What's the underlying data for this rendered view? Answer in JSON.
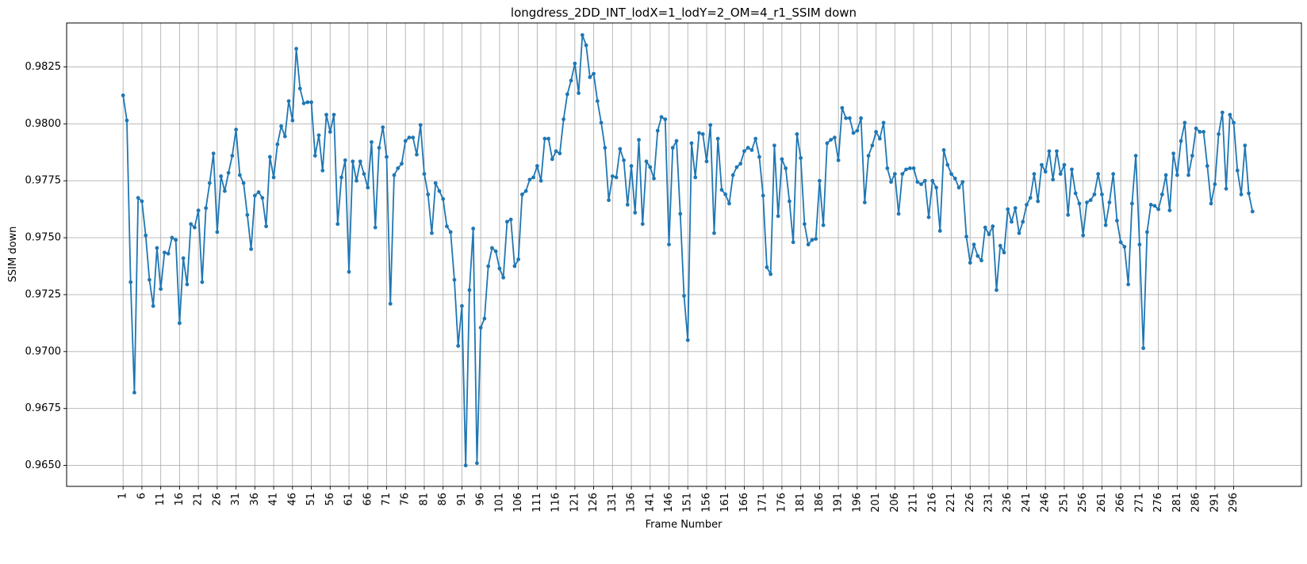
{
  "chart_data": {
    "type": "line",
    "title": "longdress_2DD_INT_lodX=1_lodY=2_OM=4_r1_SSIM down",
    "xlabel": "Frame Number",
    "ylabel": "SSIM down",
    "xlim": [
      -14,
      314
    ],
    "ylim": [
      0.96408,
      0.98443
    ],
    "xticks": [
      1,
      6,
      11,
      16,
      21,
      26,
      31,
      36,
      41,
      46,
      51,
      56,
      61,
      66,
      71,
      76,
      81,
      86,
      91,
      96,
      101,
      106,
      111,
      116,
      121,
      126,
      131,
      136,
      141,
      146,
      151,
      156,
      161,
      166,
      171,
      176,
      181,
      186,
      191,
      196,
      201,
      206,
      211,
      216,
      221,
      226,
      231,
      236,
      241,
      246,
      251,
      256,
      261,
      266,
      271,
      276,
      281,
      286,
      291,
      296
    ],
    "yticks": [
      "0.9650",
      "0.9675",
      "0.9700",
      "0.9725",
      "0.9750",
      "0.9775",
      "0.9800",
      "0.9825"
    ],
    "grid": true,
    "color": "#1f77b4",
    "marker": "circle",
    "series": [
      {
        "x_start": 1,
        "values": [
          0.98125,
          0.98015,
          0.97305,
          0.9682,
          0.97675,
          0.9766,
          0.9751,
          0.97315,
          0.972,
          0.97455,
          0.97275,
          0.97435,
          0.9743,
          0.975,
          0.9749,
          0.97125,
          0.9741,
          0.97295,
          0.9756,
          0.97545,
          0.9762,
          0.97305,
          0.9763,
          0.9774,
          0.9787,
          0.97525,
          0.9777,
          0.97705,
          0.97785,
          0.9786,
          0.97975,
          0.97775,
          0.9774,
          0.976,
          0.9745,
          0.97685,
          0.977,
          0.97675,
          0.9755,
          0.97855,
          0.97765,
          0.9791,
          0.9799,
          0.97945,
          0.981,
          0.98015,
          0.9833,
          0.98155,
          0.9809,
          0.98095,
          0.98095,
          0.9786,
          0.9795,
          0.97795,
          0.9804,
          0.97965,
          0.9804,
          0.9756,
          0.97765,
          0.9784,
          0.9735,
          0.97835,
          0.9775,
          0.97835,
          0.9778,
          0.9772,
          0.9792,
          0.97545,
          0.97895,
          0.97985,
          0.97855,
          0.9721,
          0.97775,
          0.97805,
          0.97825,
          0.97925,
          0.9794,
          0.9794,
          0.97865,
          0.97995,
          0.9778,
          0.9769,
          0.9752,
          0.9774,
          0.97705,
          0.9767,
          0.9755,
          0.97525,
          0.97315,
          0.97025,
          0.972,
          0.965,
          0.9727,
          0.9754,
          0.9651,
          0.97105,
          0.97145,
          0.97375,
          0.97455,
          0.9744,
          0.97365,
          0.97325,
          0.9757,
          0.9758,
          0.97375,
          0.97405,
          0.9769,
          0.97705,
          0.97755,
          0.97765,
          0.97815,
          0.9775,
          0.97935,
          0.97935,
          0.97845,
          0.9788,
          0.9787,
          0.9802,
          0.9813,
          0.9819,
          0.98265,
          0.98135,
          0.9839,
          0.98345,
          0.98205,
          0.9822,
          0.981,
          0.98005,
          0.97895,
          0.97665,
          0.9777,
          0.97765,
          0.9789,
          0.9784,
          0.97645,
          0.97815,
          0.9761,
          0.9793,
          0.9756,
          0.97835,
          0.9781,
          0.9776,
          0.9797,
          0.9803,
          0.9802,
          0.9747,
          0.97895,
          0.97925,
          0.97605,
          0.97245,
          0.9705,
          0.97915,
          0.97765,
          0.9796,
          0.97955,
          0.97835,
          0.97995,
          0.9752,
          0.97935,
          0.9771,
          0.9769,
          0.9765,
          0.97775,
          0.9781,
          0.97825,
          0.9788,
          0.97895,
          0.97885,
          0.97935,
          0.97855,
          0.97685,
          0.9737,
          0.9734,
          0.97905,
          0.97595,
          0.97845,
          0.97805,
          0.9766,
          0.9748,
          0.97955,
          0.9785,
          0.9756,
          0.9747,
          0.9749,
          0.97495,
          0.9775,
          0.97555,
          0.97915,
          0.9793,
          0.9794,
          0.9784,
          0.9807,
          0.98025,
          0.98025,
          0.9796,
          0.9797,
          0.98025,
          0.97655,
          0.9786,
          0.97905,
          0.97965,
          0.97935,
          0.98005,
          0.97805,
          0.97745,
          0.9778,
          0.97605,
          0.9778,
          0.978,
          0.97805,
          0.97805,
          0.97745,
          0.97735,
          0.9775,
          0.9759,
          0.9775,
          0.9772,
          0.9753,
          0.97885,
          0.9782,
          0.9778,
          0.9776,
          0.9772,
          0.97745,
          0.97505,
          0.9739,
          0.9747,
          0.9742,
          0.974,
          0.97545,
          0.97515,
          0.9755,
          0.9727,
          0.97465,
          0.97435,
          0.97625,
          0.9757,
          0.9763,
          0.9752,
          0.9757,
          0.97645,
          0.97675,
          0.9778,
          0.9766,
          0.9782,
          0.9779,
          0.9788,
          0.97755,
          0.9788,
          0.9778,
          0.9782,
          0.976,
          0.978,
          0.97695,
          0.9765,
          0.9751,
          0.97655,
          0.97665,
          0.9769,
          0.9778,
          0.9769,
          0.97555,
          0.97655,
          0.9778,
          0.97575,
          0.9748,
          0.9746,
          0.97295,
          0.9765,
          0.9786,
          0.9747,
          0.97015,
          0.97525,
          0.97645,
          0.9764,
          0.97625,
          0.9769,
          0.97775,
          0.9762,
          0.9787,
          0.97775,
          0.97925,
          0.98005,
          0.97775,
          0.9786,
          0.9798,
          0.97965,
          0.97965,
          0.97815,
          0.9765,
          0.97735,
          0.97955,
          0.9805,
          0.97715,
          0.9804,
          0.98005,
          0.97795,
          0.9769,
          0.97905,
          0.97695,
          0.97615
        ]
      }
    ]
  }
}
